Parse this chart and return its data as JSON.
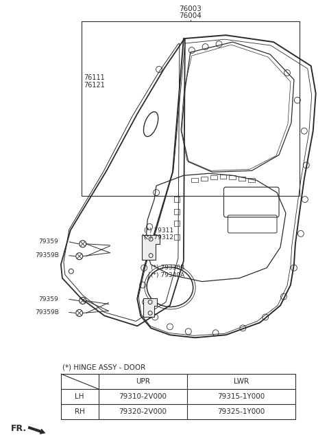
{
  "bg_color": "#ffffff",
  "line_color": "#2a2a2a",
  "table_title": "(*) HINGE ASSY - DOOR",
  "table_headers": [
    "",
    "UPR",
    "LWR"
  ],
  "table_rows": [
    [
      "LH",
      "79310-2V000",
      "79315-1Y000"
    ],
    [
      "RH",
      "79320-2V000",
      "79325-1Y000"
    ]
  ],
  "label_76003": "76003",
  "label_76004": "76004",
  "label_76111": "76111",
  "label_76121": "76121",
  "label_79311": "(*) 79311",
  "label_79312": "(*) 79312",
  "label_79359": "79359",
  "label_79359B": "79359B",
  "label_79330B": "(*) 79330B",
  "label_79340A": "(*) 79340A",
  "fr_label": "FR."
}
